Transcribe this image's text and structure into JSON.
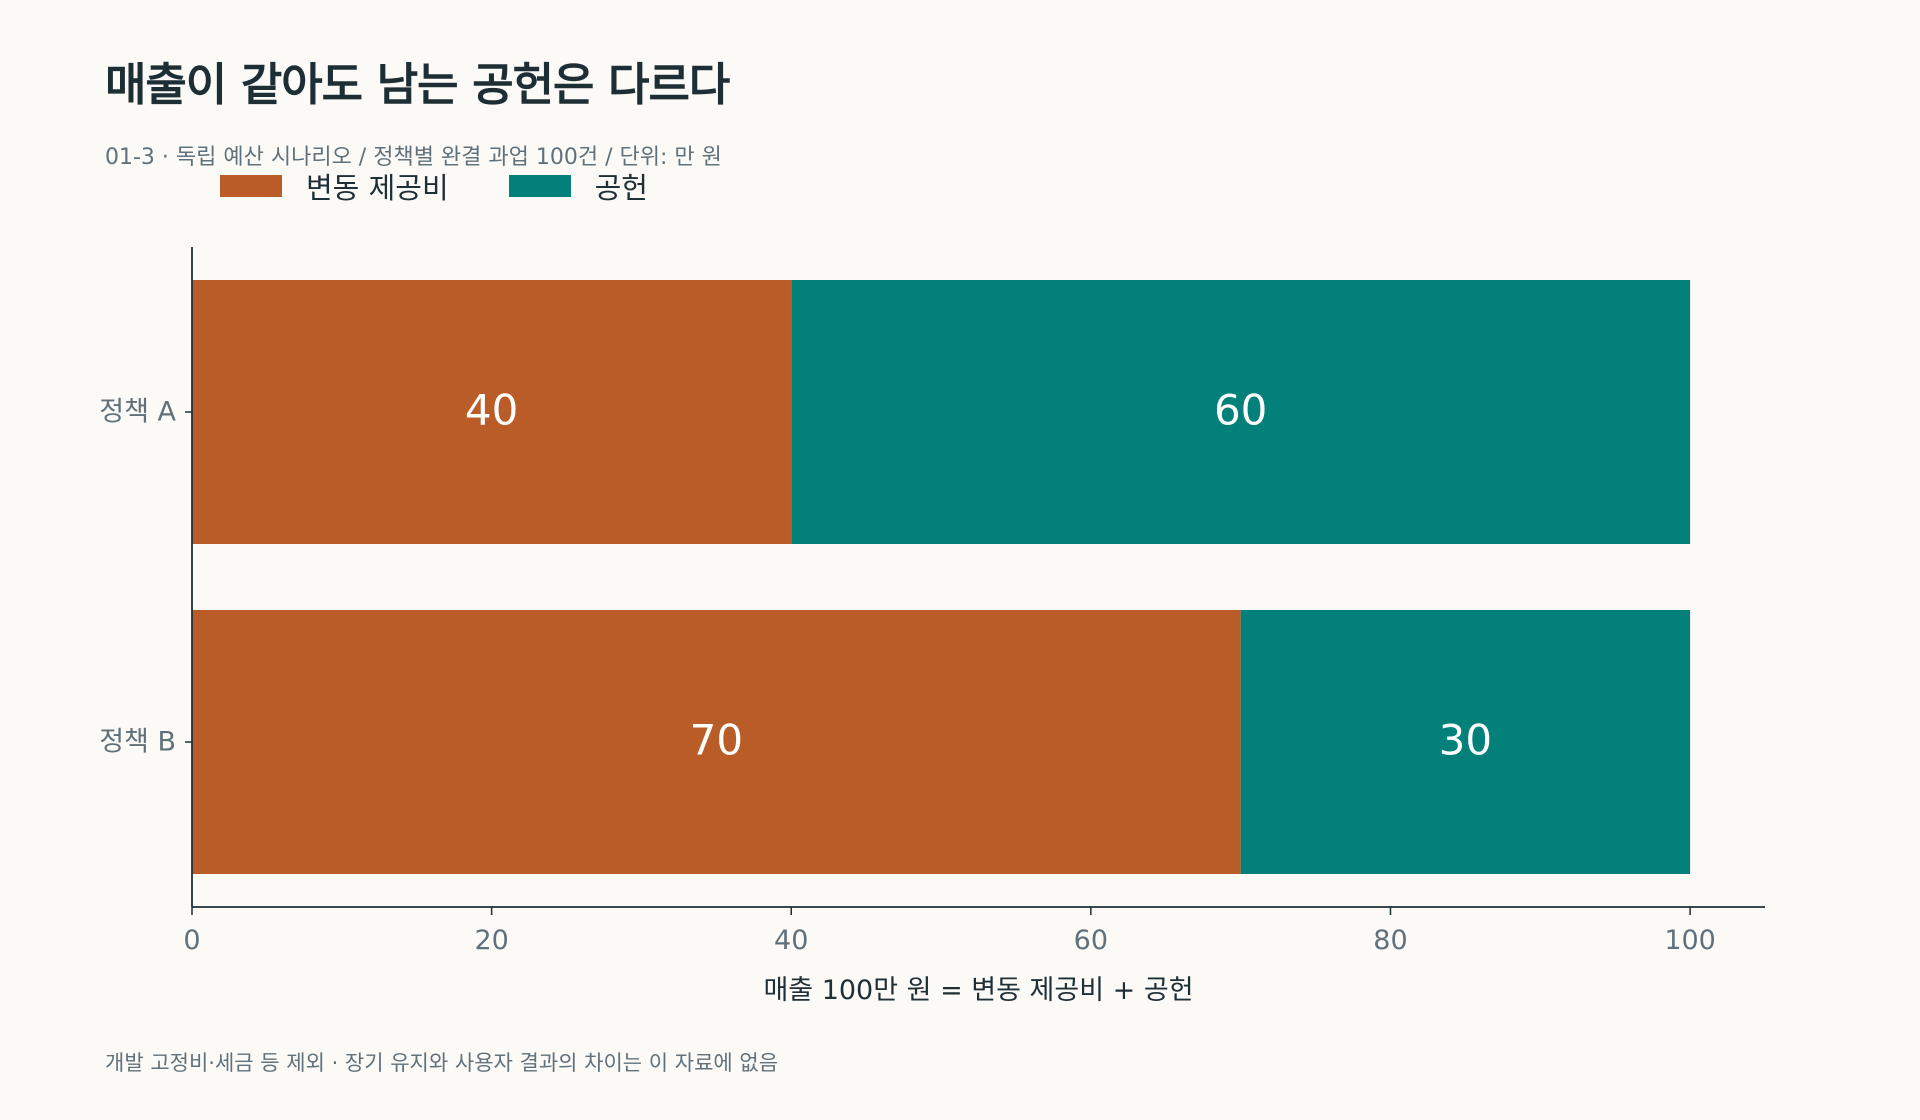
{
  "title": "매출이 같아도 남는 공헌은 다르다",
  "subtitle": "01-3 · 독립 예산 시나리오 / 정책별 완결 과업 100건 / 단위: 만 원",
  "footnote": "개발 고정비·세금 등 제외 · 장기 유지와 사용자 결과의 차이는 이 자료에 없음",
  "colors": {
    "variable_cost": "#b95c27",
    "contribution": "#03807a",
    "background": "#fbfaf6",
    "axis": "#1f2f36",
    "tick_label": "#60717b",
    "bar_label": "#ffffff"
  },
  "chart_data": {
    "type": "bar",
    "orientation": "horizontal",
    "stacked": true,
    "categories": [
      "정책 A",
      "정책 B"
    ],
    "series": [
      {
        "name": "변동 제공비",
        "values": [
          40,
          70
        ]
      },
      {
        "name": "공헌",
        "values": [
          60,
          30
        ]
      }
    ],
    "xlabel": "매출 100만 원 = 변동 제공비 + 공헌",
    "ylabel": "",
    "xlim": [
      0,
      105
    ],
    "xticks": [
      0,
      20,
      40,
      60,
      80,
      100
    ],
    "grid": false,
    "legend_placement": "top-left",
    "data_labels": true
  }
}
